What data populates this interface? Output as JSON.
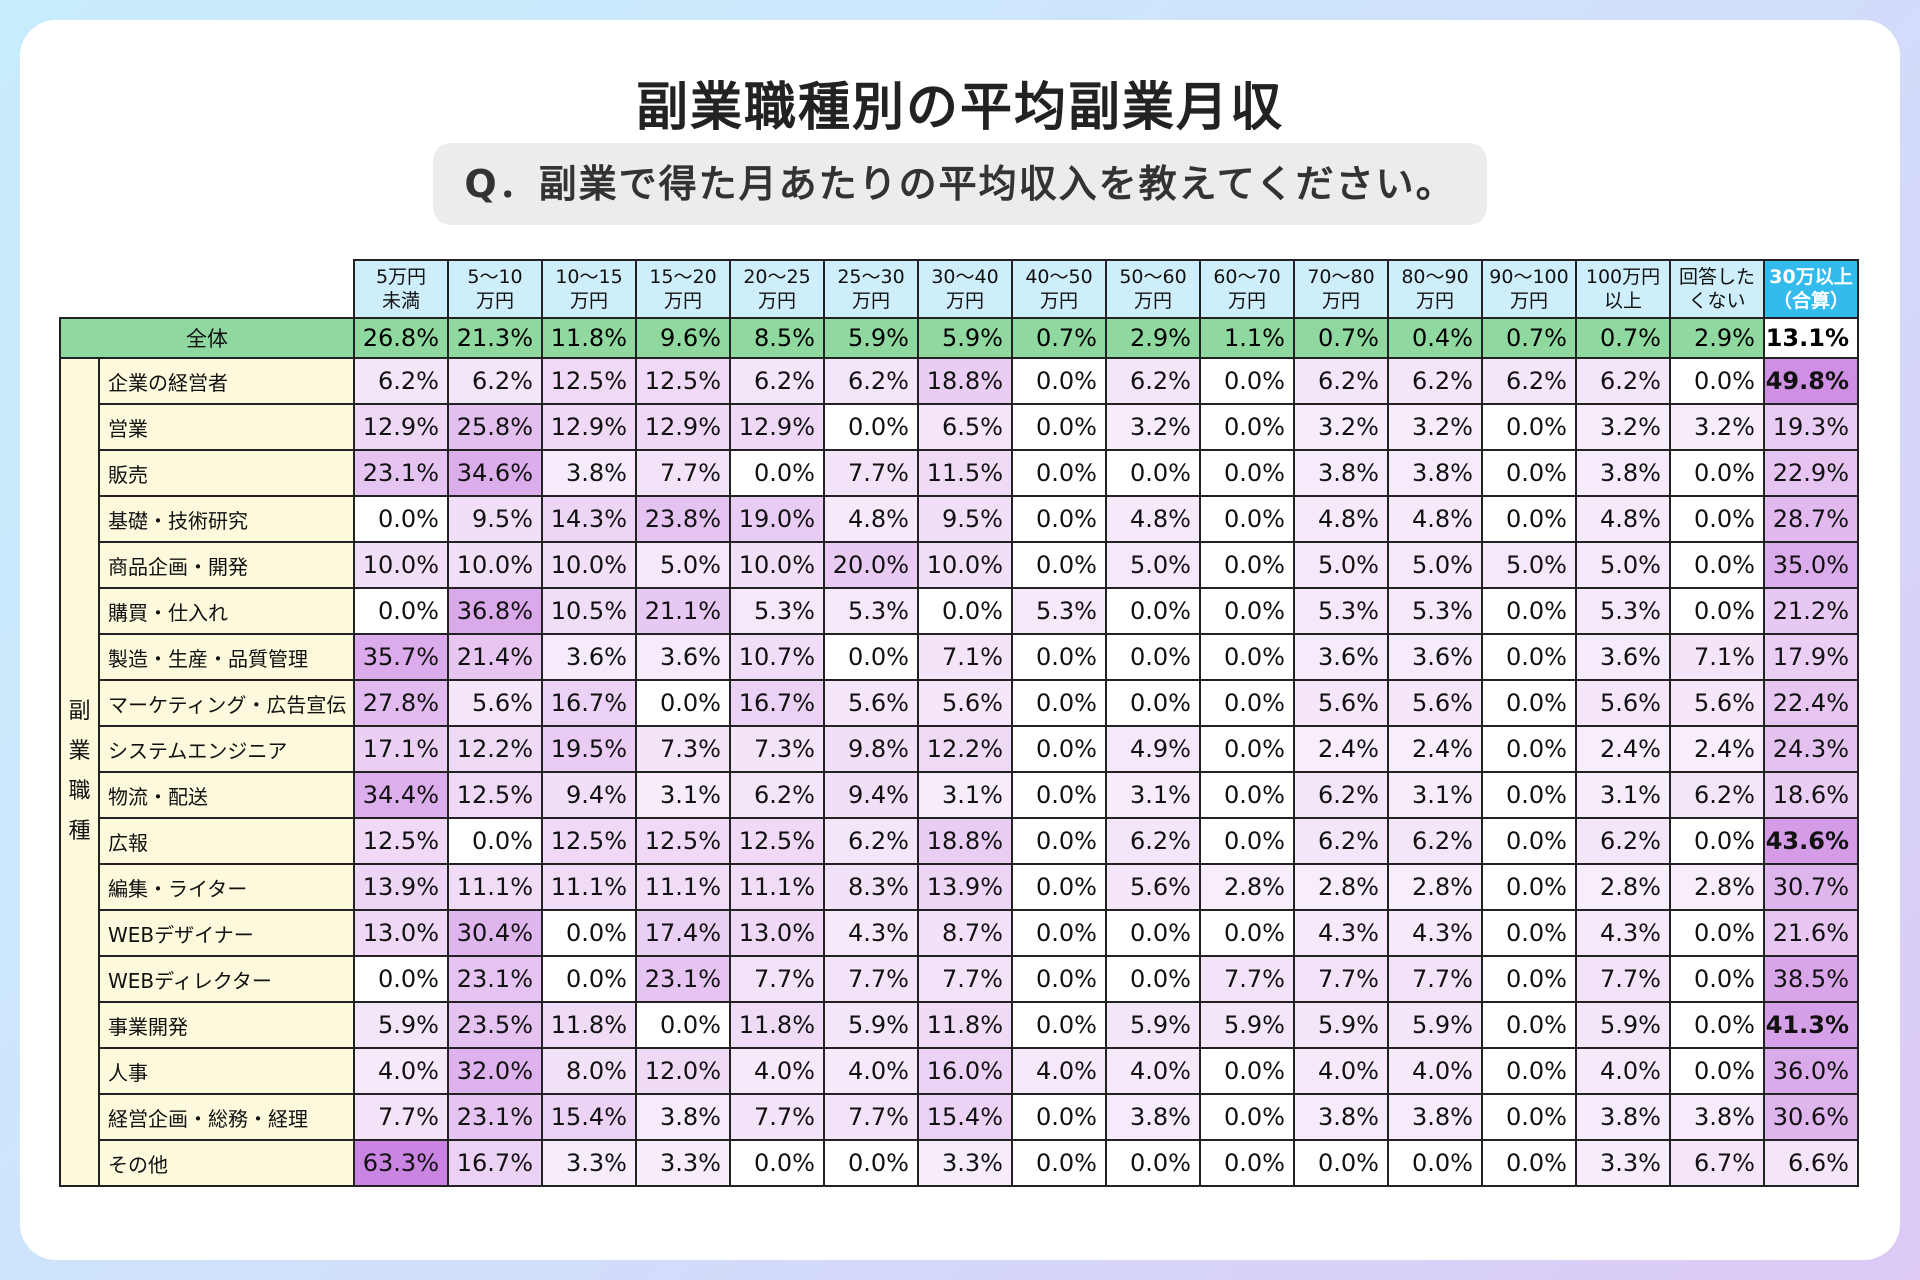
{
  "title": "副業職種別の平均副業月収",
  "question": "Q．副業で得た月あたりの平均収入を教えてください。",
  "colors": {
    "header": "#cdeefa",
    "header_highlight": "#33bbee",
    "total_row": "#8fd89f",
    "row_label": "#fdf9dc",
    "heat_max": "#c77ee0",
    "bold_threshold": 40
  },
  "chart_data": {
    "type": "table",
    "title": "副業職種別の平均副業月収",
    "row_group_label": "副業職種",
    "columns": [
      "5万円\n未満",
      "5〜10\n万円",
      "10〜15\n万円",
      "15〜20\n万円",
      "20〜25\n万円",
      "25〜30\n万円",
      "30〜40\n万円",
      "40〜50\n万円",
      "50〜60\n万円",
      "60〜70\n万円",
      "70〜80\n万円",
      "80〜90\n万円",
      "90〜100\n万円",
      "100万円\n以上",
      "回答した\nくない",
      "30万以上\n（合算）"
    ],
    "total": {
      "label": "全体",
      "values": [
        "26.8%",
        "21.3%",
        "11.8%",
        "9.6%",
        "8.5%",
        "5.9%",
        "5.9%",
        "0.7%",
        "2.9%",
        "1.1%",
        "0.7%",
        "0.4%",
        "0.7%",
        "0.7%",
        "2.9%",
        "13.1%"
      ]
    },
    "rows": [
      {
        "label": "企業の経営者",
        "values": [
          "6.2%",
          "6.2%",
          "12.5%",
          "12.5%",
          "6.2%",
          "6.2%",
          "18.8%",
          "0.0%",
          "6.2%",
          "0.0%",
          "6.2%",
          "6.2%",
          "6.2%",
          "6.2%",
          "0.0%",
          "49.8%"
        ]
      },
      {
        "label": "営業",
        "values": [
          "12.9%",
          "25.8%",
          "12.9%",
          "12.9%",
          "12.9%",
          "0.0%",
          "6.5%",
          "0.0%",
          "3.2%",
          "0.0%",
          "3.2%",
          "3.2%",
          "0.0%",
          "3.2%",
          "3.2%",
          "19.3%"
        ]
      },
      {
        "label": "販売",
        "values": [
          "23.1%",
          "34.6%",
          "3.8%",
          "7.7%",
          "0.0%",
          "7.7%",
          "11.5%",
          "0.0%",
          "0.0%",
          "0.0%",
          "3.8%",
          "3.8%",
          "0.0%",
          "3.8%",
          "0.0%",
          "22.9%"
        ]
      },
      {
        "label": "基礎・技術研究",
        "values": [
          "0.0%",
          "9.5%",
          "14.3%",
          "23.8%",
          "19.0%",
          "4.8%",
          "9.5%",
          "0.0%",
          "4.8%",
          "0.0%",
          "4.8%",
          "4.8%",
          "0.0%",
          "4.8%",
          "0.0%",
          "28.7%"
        ]
      },
      {
        "label": "商品企画・開発",
        "values": [
          "10.0%",
          "10.0%",
          "10.0%",
          "5.0%",
          "10.0%",
          "20.0%",
          "10.0%",
          "0.0%",
          "5.0%",
          "0.0%",
          "5.0%",
          "5.0%",
          "5.0%",
          "5.0%",
          "0.0%",
          "35.0%"
        ]
      },
      {
        "label": "購買・仕入れ",
        "values": [
          "0.0%",
          "36.8%",
          "10.5%",
          "21.1%",
          "5.3%",
          "5.3%",
          "0.0%",
          "5.3%",
          "0.0%",
          "0.0%",
          "5.3%",
          "5.3%",
          "0.0%",
          "5.3%",
          "0.0%",
          "21.2%"
        ]
      },
      {
        "label": "製造・生産・品質管理",
        "values": [
          "35.7%",
          "21.4%",
          "3.6%",
          "3.6%",
          "10.7%",
          "0.0%",
          "7.1%",
          "0.0%",
          "0.0%",
          "0.0%",
          "3.6%",
          "3.6%",
          "0.0%",
          "3.6%",
          "7.1%",
          "17.9%"
        ]
      },
      {
        "label": "マーケティング・広告宣伝",
        "values": [
          "27.8%",
          "5.6%",
          "16.7%",
          "0.0%",
          "16.7%",
          "5.6%",
          "5.6%",
          "0.0%",
          "0.0%",
          "0.0%",
          "5.6%",
          "5.6%",
          "0.0%",
          "5.6%",
          "5.6%",
          "22.4%"
        ]
      },
      {
        "label": "システムエンジニア",
        "values": [
          "17.1%",
          "12.2%",
          "19.5%",
          "7.3%",
          "7.3%",
          "9.8%",
          "12.2%",
          "0.0%",
          "4.9%",
          "0.0%",
          "2.4%",
          "2.4%",
          "0.0%",
          "2.4%",
          "2.4%",
          "24.3%"
        ]
      },
      {
        "label": "物流・配送",
        "values": [
          "34.4%",
          "12.5%",
          "9.4%",
          "3.1%",
          "6.2%",
          "9.4%",
          "3.1%",
          "0.0%",
          "3.1%",
          "0.0%",
          "6.2%",
          "3.1%",
          "0.0%",
          "3.1%",
          "6.2%",
          "18.6%"
        ]
      },
      {
        "label": "広報",
        "values": [
          "12.5%",
          "0.0%",
          "12.5%",
          "12.5%",
          "12.5%",
          "6.2%",
          "18.8%",
          "0.0%",
          "6.2%",
          "0.0%",
          "6.2%",
          "6.2%",
          "0.0%",
          "6.2%",
          "0.0%",
          "43.6%"
        ]
      },
      {
        "label": "編集・ライター",
        "values": [
          "13.9%",
          "11.1%",
          "11.1%",
          "11.1%",
          "11.1%",
          "8.3%",
          "13.9%",
          "0.0%",
          "5.6%",
          "2.8%",
          "2.8%",
          "2.8%",
          "0.0%",
          "2.8%",
          "2.8%",
          "30.7%"
        ]
      },
      {
        "label": "WEBデザイナー",
        "values": [
          "13.0%",
          "30.4%",
          "0.0%",
          "17.4%",
          "13.0%",
          "4.3%",
          "8.7%",
          "0.0%",
          "0.0%",
          "0.0%",
          "4.3%",
          "4.3%",
          "0.0%",
          "4.3%",
          "0.0%",
          "21.6%"
        ]
      },
      {
        "label": "WEBディレクター",
        "values": [
          "0.0%",
          "23.1%",
          "0.0%",
          "23.1%",
          "7.7%",
          "7.7%",
          "7.7%",
          "0.0%",
          "0.0%",
          "7.7%",
          "7.7%",
          "7.7%",
          "0.0%",
          "7.7%",
          "0.0%",
          "38.5%"
        ]
      },
      {
        "label": "事業開発",
        "values": [
          "5.9%",
          "23.5%",
          "11.8%",
          "0.0%",
          "11.8%",
          "5.9%",
          "11.8%",
          "0.0%",
          "5.9%",
          "5.9%",
          "5.9%",
          "5.9%",
          "0.0%",
          "5.9%",
          "0.0%",
          "41.3%"
        ]
      },
      {
        "label": "人事",
        "values": [
          "4.0%",
          "32.0%",
          "8.0%",
          "12.0%",
          "4.0%",
          "4.0%",
          "16.0%",
          "4.0%",
          "4.0%",
          "0.0%",
          "4.0%",
          "4.0%",
          "0.0%",
          "4.0%",
          "0.0%",
          "36.0%"
        ]
      },
      {
        "label": "経営企画・総務・経理",
        "values": [
          "7.7%",
          "23.1%",
          "15.4%",
          "3.8%",
          "7.7%",
          "7.7%",
          "15.4%",
          "0.0%",
          "3.8%",
          "0.0%",
          "3.8%",
          "3.8%",
          "0.0%",
          "3.8%",
          "3.8%",
          "30.6%"
        ]
      },
      {
        "label": "その他",
        "values": [
          "63.3%",
          "16.7%",
          "3.3%",
          "3.3%",
          "0.0%",
          "0.0%",
          "3.3%",
          "0.0%",
          "0.0%",
          "0.0%",
          "0.0%",
          "0.0%",
          "0.0%",
          "3.3%",
          "6.7%",
          "6.6%"
        ]
      }
    ]
  }
}
